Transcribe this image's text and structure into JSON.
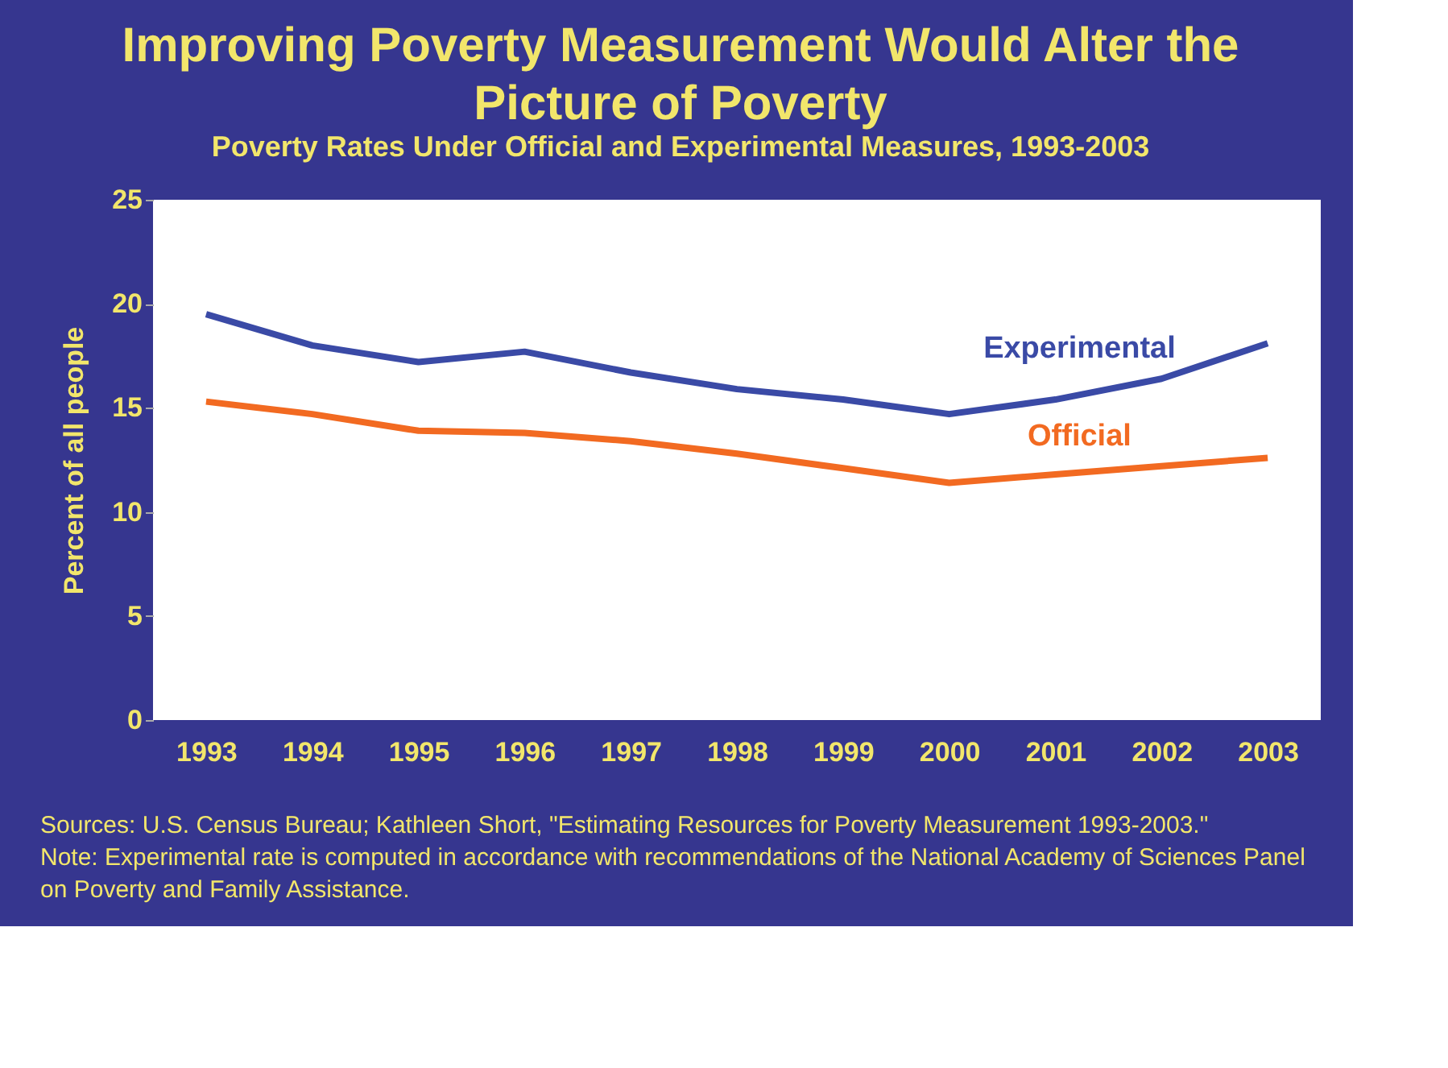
{
  "chart_data": {
    "type": "line",
    "title": "Improving Poverty Measurement Would Alter the Picture of Poverty",
    "subtitle": "Poverty Rates Under Official and Experimental Measures, 1993-2003",
    "ylabel": "Percent of all people",
    "categories": [
      "1993",
      "1994",
      "1995",
      "1996",
      "1997",
      "1998",
      "1999",
      "2000",
      "2001",
      "2002",
      "2003"
    ],
    "series": [
      {
        "name": "Experimental",
        "color": "#3a4aa6",
        "values": [
          19.5,
          18.0,
          17.2,
          17.7,
          16.7,
          15.9,
          15.4,
          14.7,
          15.4,
          16.4,
          18.1
        ]
      },
      {
        "name": "Official",
        "color": "#f26a21",
        "values": [
          15.3,
          14.7,
          13.9,
          13.8,
          13.4,
          12.8,
          12.1,
          11.4,
          11.8,
          12.2,
          12.6
        ]
      }
    ],
    "ylim": [
      0,
      25
    ],
    "yticks": [
      0,
      5,
      10,
      15,
      20,
      25
    ],
    "legend": false,
    "marker": "none",
    "line_style": "solid",
    "annotations": [
      "Sources: U.S. Census Bureau; Kathleen Short, \"Estimating Resources for Poverty Measurement 1993-2003.\"",
      "Note: Experimental rate is computed in accordance with recommendations of the National Academy of Sciences Panel on Poverty and Family Assistance."
    ]
  }
}
